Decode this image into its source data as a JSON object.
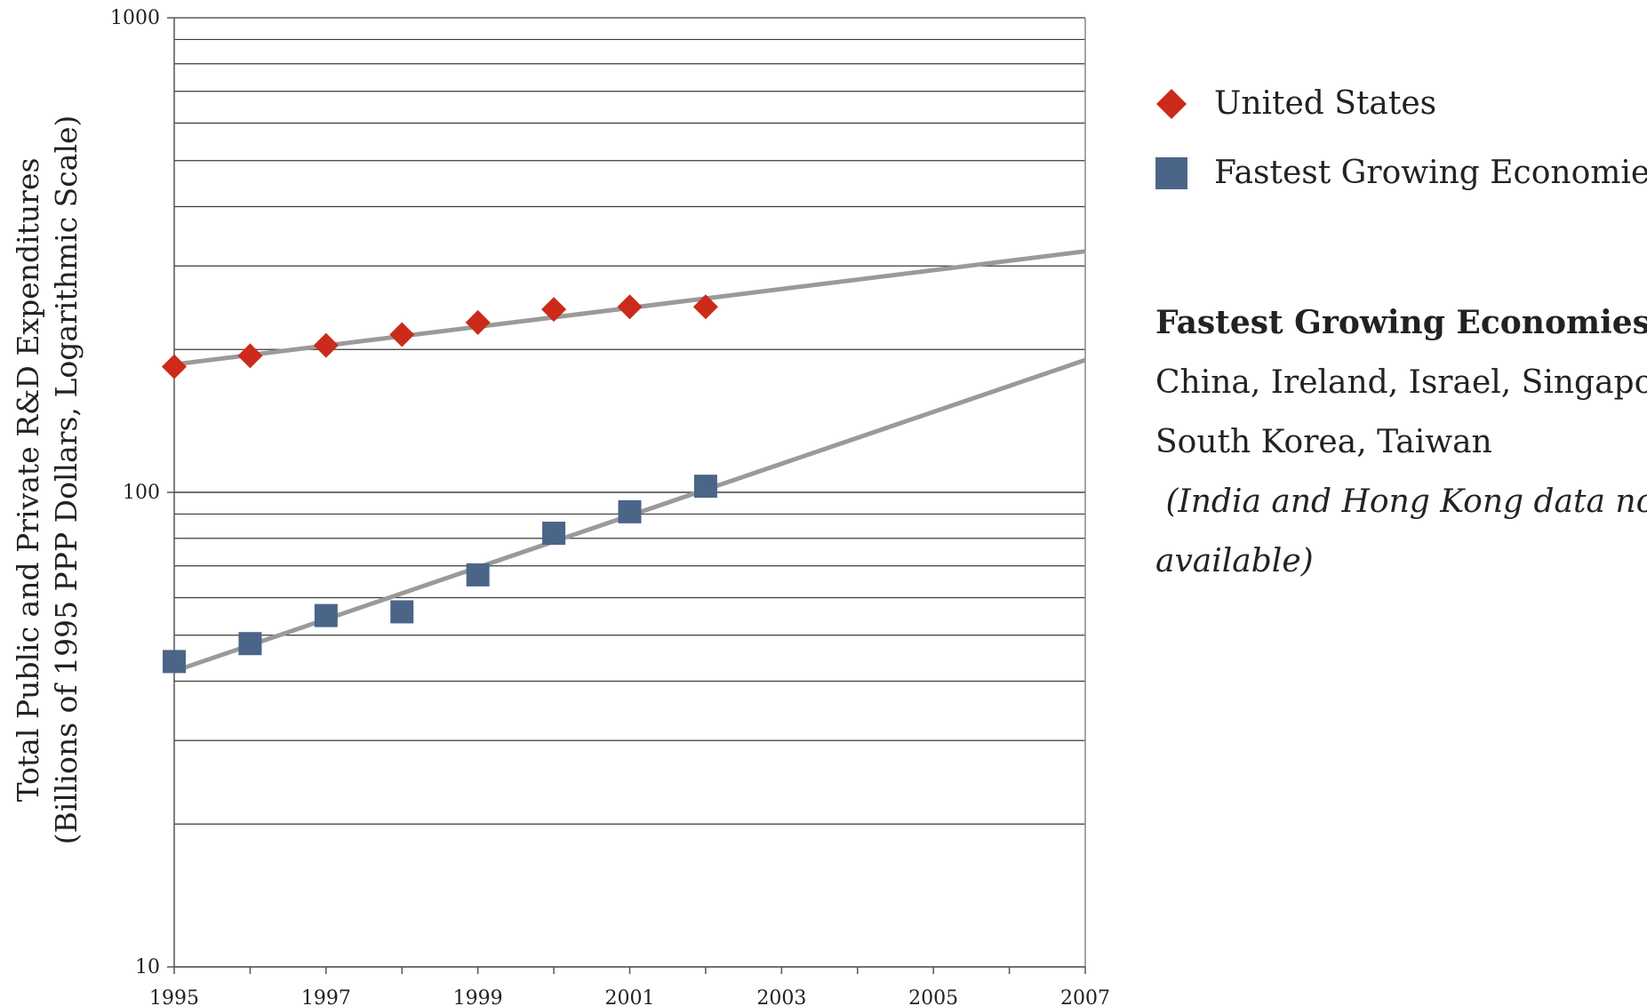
{
  "chart_data": {
    "type": "scatter",
    "title": "",
    "xlabel": "",
    "ylabel": "Total Public and Private R&D Expenditures",
    "ylabel2": "(Billions of 1995 PPP Dollars, Logarithmic Scale)",
    "yscale": "log",
    "xlim": [
      1995,
      2007
    ],
    "ylim": [
      10,
      1000
    ],
    "x_ticks": [
      "1995",
      "1997",
      "1999",
      "2001",
      "2003",
      "2005",
      "2007"
    ],
    "y_ticks": [
      "10",
      "100",
      "1000"
    ],
    "grid": "horizontal",
    "legend_position": "top-right",
    "series": [
      {
        "name": "United States",
        "marker": "diamond",
        "color": "#cc2a1a",
        "x": [
          1995,
          1996,
          1997,
          1998,
          1999,
          2000,
          2001,
          2002
        ],
        "values": [
          184,
          194,
          204,
          215,
          228,
          243,
          246,
          246
        ],
        "trendline": {
          "x": [
            1995,
            2007
          ],
          "y": [
            186,
            322
          ]
        }
      },
      {
        "name": "Fastest Growing Economies",
        "marker": "square",
        "color": "#4b6588",
        "x": [
          1995,
          1996,
          1997,
          1998,
          1999,
          2000,
          2001,
          2002
        ],
        "values": [
          44,
          48,
          55,
          56,
          67,
          82,
          91,
          103
        ],
        "trendline": {
          "x": [
            1995,
            2007
          ],
          "y": [
            42,
            190
          ]
        }
      }
    ]
  },
  "note": {
    "heading": "Fastest Growing Economies",
    "colon": ":",
    "line1": "China, Ireland, Israel, Singapore,",
    "line2": "South Korea, Taiwan",
    "italic1": " (India and Hong Kong data not",
    "italic2": "available)"
  }
}
